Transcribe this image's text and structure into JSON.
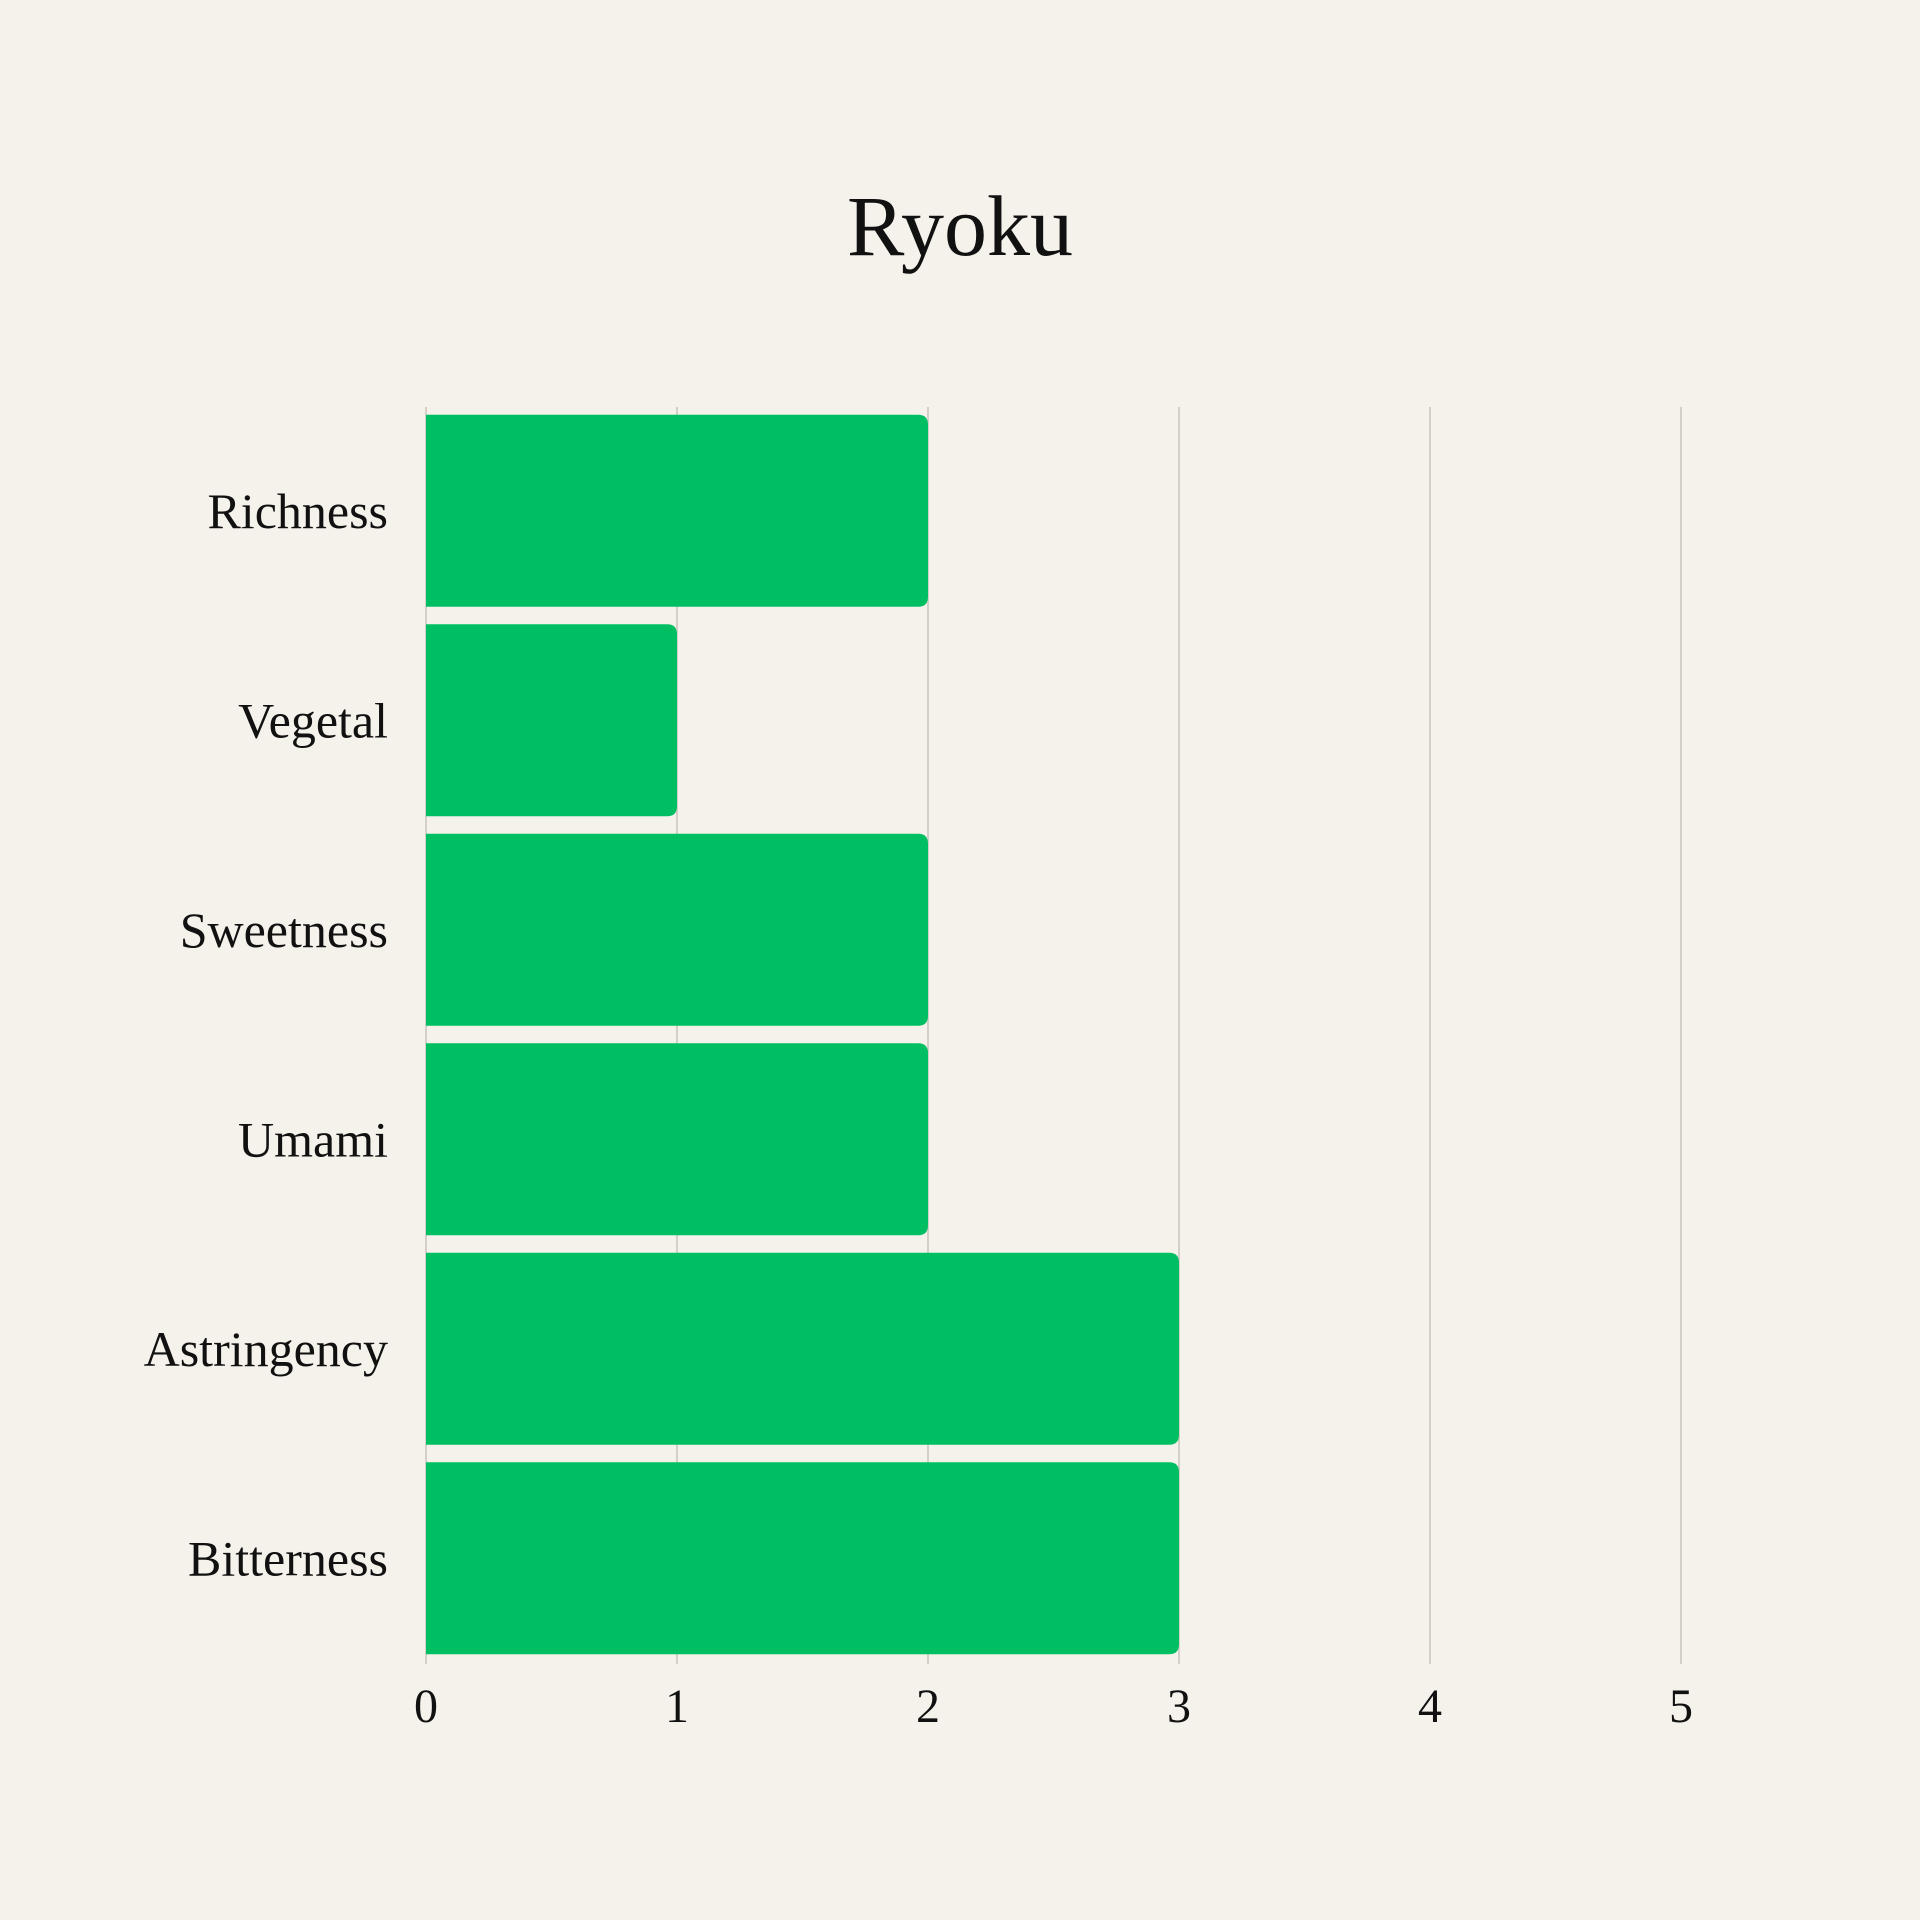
{
  "chart_data": {
    "type": "bar",
    "orientation": "horizontal",
    "title": "Ryoku",
    "categories": [
      "Richness",
      "Vegetal",
      "Sweetness",
      "Umami",
      "Astringency",
      "Bitterness"
    ],
    "values": [
      2,
      1,
      2,
      2,
      3,
      3
    ],
    "xlim": [
      0,
      5
    ],
    "xticks": [
      "0",
      "1",
      "2",
      "3",
      "4",
      "5"
    ],
    "xlabel": "",
    "ylabel": "",
    "grid": "vertical",
    "colors": {
      "bar": "#00bf63",
      "background": "#f5f1eb",
      "grid": "#c9c5be"
    }
  }
}
